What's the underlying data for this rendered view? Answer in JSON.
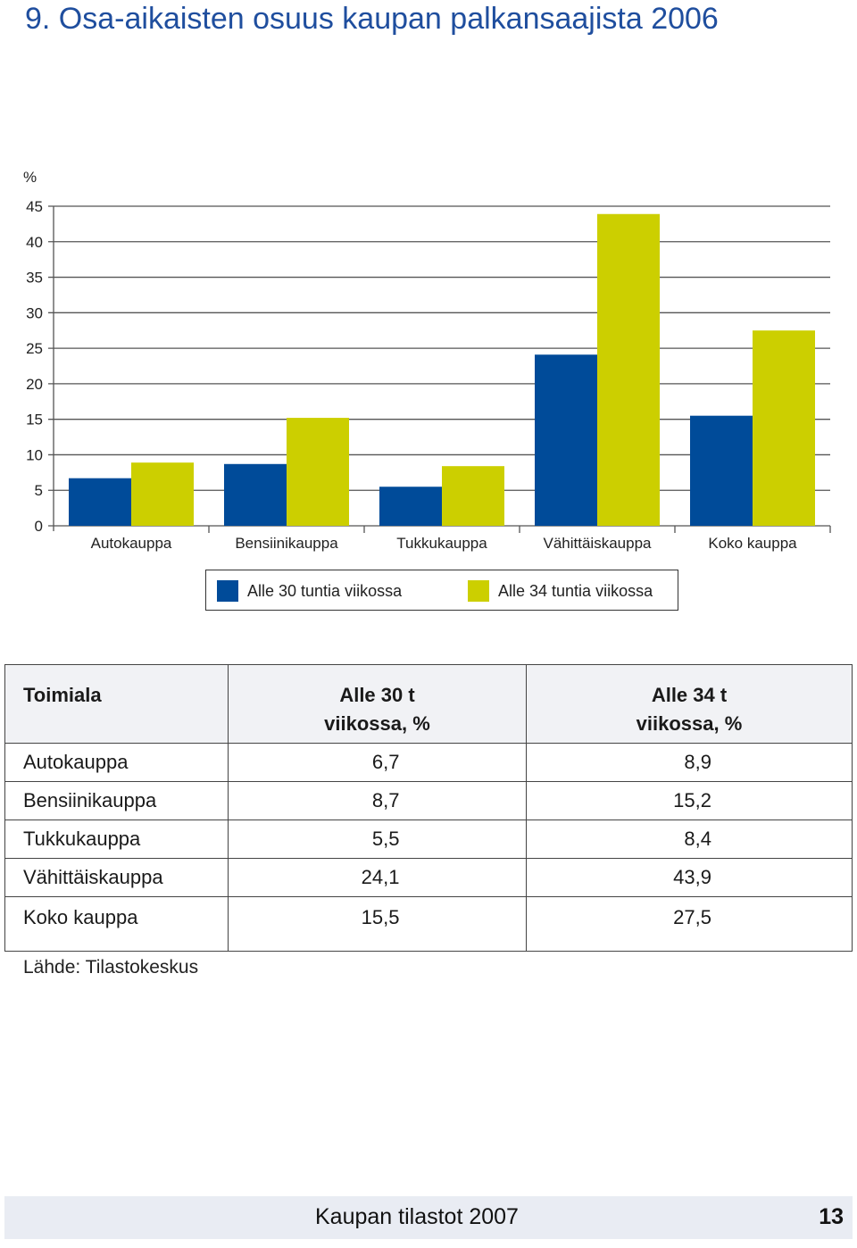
{
  "page": {
    "title": "9.  Osa-aikaisten osuus kaupan palkansaajista 2006",
    "source": "Lähde: Tilastokeskus",
    "footer": {
      "publication": "Kaupan tilastot 2007",
      "page_number": "13"
    }
  },
  "colors": {
    "series1": "#004b99",
    "series2": "#cccf00",
    "title": "#1f4e9e"
  },
  "chart_data": {
    "type": "bar",
    "unit_label": "%",
    "categories": [
      "Autokauppa",
      "Bensiinikauppa",
      "Tukkukauppa",
      "Vähittäiskauppa",
      "Koko kauppa"
    ],
    "series": [
      {
        "name": "Alle 30 tuntia viikossa",
        "values": [
          6.7,
          8.7,
          5.5,
          24.1,
          15.5
        ]
      },
      {
        "name": "Alle 34 tuntia viikossa",
        "values": [
          8.9,
          15.2,
          8.4,
          43.9,
          27.5
        ]
      }
    ],
    "ylim": [
      0,
      45
    ],
    "yticks": [
      "0",
      "5",
      "10",
      "15",
      "20",
      "25",
      "30",
      "35",
      "40",
      "45"
    ],
    "grid": true,
    "legend_position": "bottom"
  },
  "table": {
    "headers": {
      "c0": "Toimiala",
      "c1_line1": "Alle 30 t",
      "c1_line2": "viikossa, %",
      "c2_line1": "Alle 34 t",
      "c2_line2": "viikossa, %"
    },
    "rows": [
      {
        "name": "Autokauppa",
        "v1": "6,7",
        "v2": "8,9"
      },
      {
        "name": "Bensiinikauppa",
        "v1": "8,7",
        "v2": "15,2"
      },
      {
        "name": "Tukkukauppa",
        "v1": "5,5",
        "v2": "8,4"
      },
      {
        "name": "Vähittäiskauppa",
        "v1": "24,1",
        "v2": "43,9"
      },
      {
        "name": "Koko kauppa",
        "v1": "15,5",
        "v2": "27,5"
      }
    ]
  }
}
